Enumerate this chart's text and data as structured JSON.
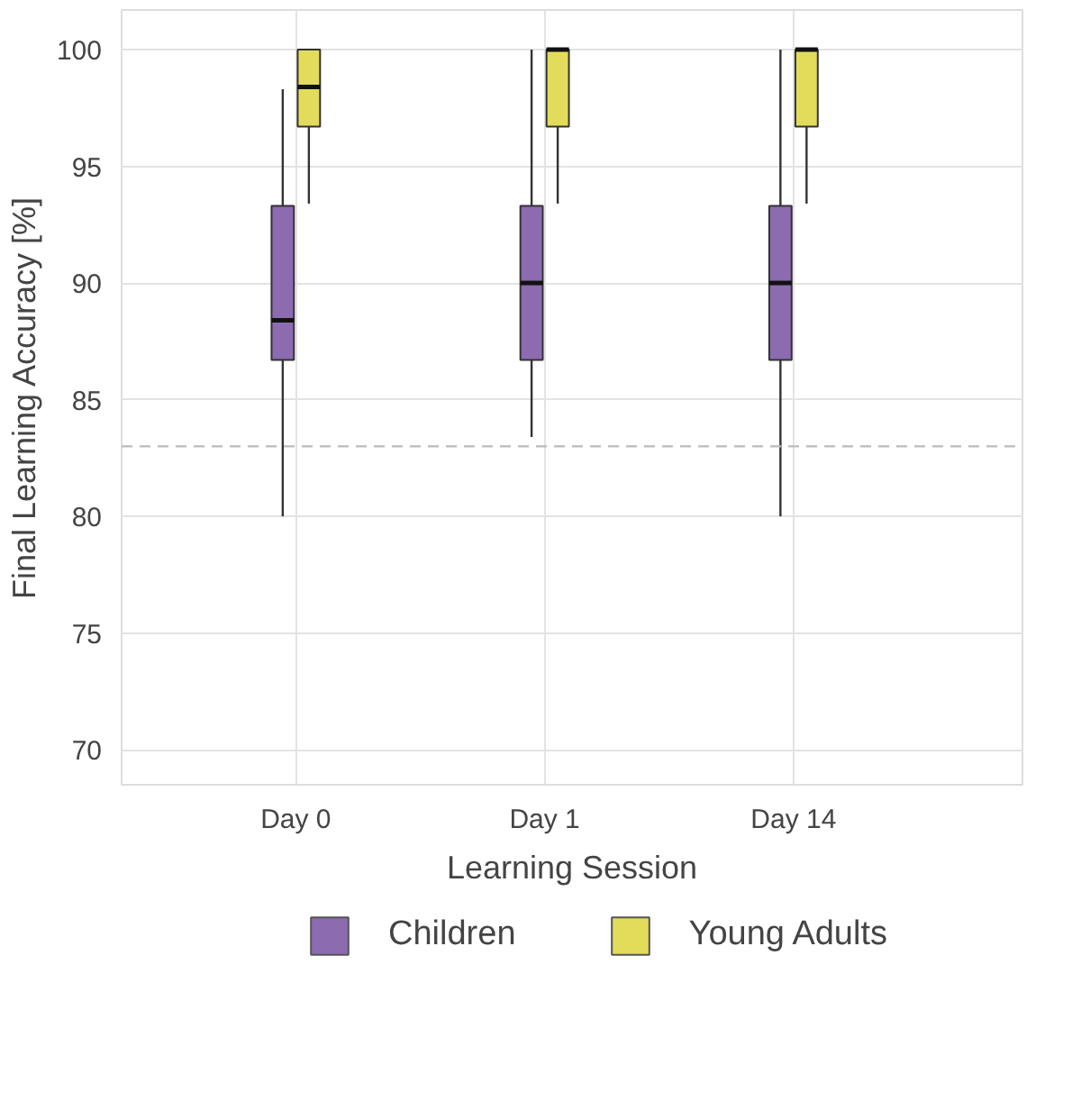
{
  "chart_data": {
    "type": "box",
    "xlabel": "Learning Session",
    "ylabel": "Final Learning Accuracy [%]",
    "categories": [
      "Day 0",
      "Day 1",
      "Day 14"
    ],
    "series": [
      {
        "name": "Children",
        "color": "#8c6bb1",
        "boxes": [
          {
            "low": 80.0,
            "q1": 86.7,
            "median": 88.4,
            "q3": 93.3,
            "high": 98.3
          },
          {
            "low": 83.4,
            "q1": 86.7,
            "median": 90.0,
            "q3": 93.3,
            "high": 100
          },
          {
            "low": 80.0,
            "q1": 86.7,
            "median": 90.0,
            "q3": 93.3,
            "high": 100
          }
        ]
      },
      {
        "name": "Young Adults",
        "color": "#e3dc5b",
        "boxes": [
          {
            "low": 93.4,
            "q1": 96.7,
            "median": 98.4,
            "q3": 100,
            "high": 100
          },
          {
            "low": 93.4,
            "q1": 96.7,
            "median": 100,
            "q3": 100,
            "high": 100
          },
          {
            "low": 93.4,
            "q1": 96.7,
            "median": 100,
            "q3": 100,
            "high": 100
          }
        ]
      }
    ],
    "ylim": [
      68.5,
      101.7
    ],
    "yticks": [
      70,
      75,
      80,
      85,
      90,
      95,
      100
    ],
    "ref_lines": [
      {
        "axis": "y",
        "value": 83,
        "color": "#bbbbbb",
        "line_style": "dashed"
      }
    ],
    "grid": true,
    "legend": "bottom"
  }
}
